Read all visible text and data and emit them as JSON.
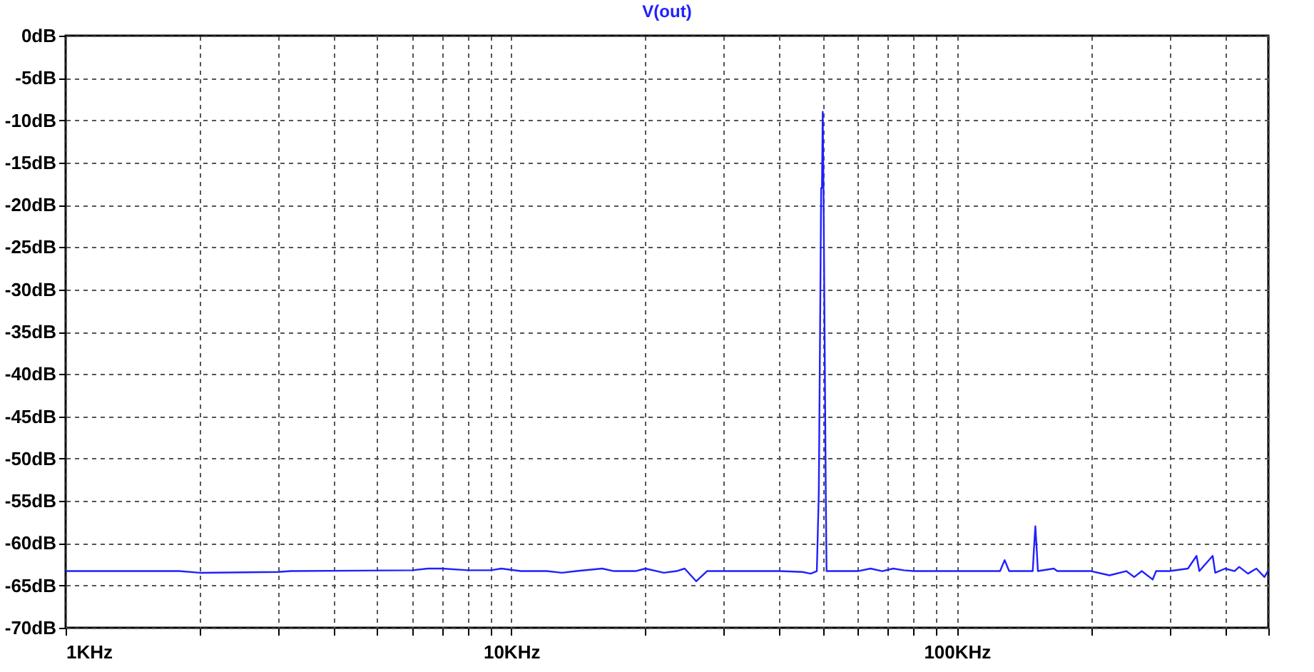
{
  "chart_data": {
    "type": "line",
    "title": "V(out)",
    "x": [
      1,
      1.8,
      2,
      3,
      3.2,
      6,
      6.5,
      7,
      8,
      9,
      9.5,
      10.5,
      12,
      13,
      14,
      16,
      17,
      19,
      20,
      22,
      23.5,
      24.5,
      26,
      27.5,
      30,
      40,
      45,
      47,
      48.5,
      49,
      49.3,
      49.6,
      49.8,
      50,
      50.2,
      50.5,
      50.8,
      51,
      55,
      60,
      64,
      68,
      72,
      76,
      80,
      100,
      125,
      128,
      131,
      148,
      149,
      150,
      151,
      152,
      165,
      168,
      200,
      220,
      240,
      250,
      260,
      275,
      280,
      300,
      330,
      345,
      350,
      375,
      380,
      400,
      420,
      430,
      450,
      470,
      490,
      500
    ],
    "series": [
      {
        "color": "#2020ff",
        "values": [
          -63.3,
          -63.3,
          -63.5,
          -63.4,
          -63.3,
          -63.2,
          -63.0,
          -63.0,
          -63.2,
          -63.2,
          -63.0,
          -63.3,
          -63.3,
          -63.5,
          -63.3,
          -63.0,
          -63.3,
          -63.3,
          -63.0,
          -63.5,
          -63.3,
          -63.0,
          -64.5,
          -63.3,
          -63.3,
          -63.3,
          -63.4,
          -63.6,
          -63.3,
          -54,
          -36,
          -18,
          -18,
          -9,
          -18,
          -36,
          -54,
          -63.3,
          -63.3,
          -63.3,
          -63.0,
          -63.3,
          -63.0,
          -63.2,
          -63.3,
          -63.3,
          -63.3,
          -62,
          -63.3,
          -63.3,
          -60.5,
          -58,
          -60.5,
          -63.3,
          -63.0,
          -63.3,
          -63.3,
          -63.8,
          -63.3,
          -64,
          -63.3,
          -64.3,
          -63.3,
          -63.3,
          -63,
          -61.5,
          -63.3,
          -61.5,
          -63.5,
          -63,
          -63.3,
          -62.8,
          -63.6,
          -63,
          -64,
          -63.2
        ]
      }
    ],
    "log": "x",
    "xlim": [
      1,
      500
    ],
    "xticks": [
      {
        "value": 1,
        "label": "1KHz"
      },
      {
        "value": 2,
        "label": null
      },
      {
        "value": 3,
        "label": null
      },
      {
        "value": 4,
        "label": null
      },
      {
        "value": 5,
        "label": null
      },
      {
        "value": 6,
        "label": null
      },
      {
        "value": 7,
        "label": null
      },
      {
        "value": 8,
        "label": null
      },
      {
        "value": 9,
        "label": null
      },
      {
        "value": 10,
        "label": "10KHz"
      },
      {
        "value": 20,
        "label": null
      },
      {
        "value": 30,
        "label": null
      },
      {
        "value": 40,
        "label": null
      },
      {
        "value": 50,
        "label": null
      },
      {
        "value": 60,
        "label": null
      },
      {
        "value": 70,
        "label": null
      },
      {
        "value": 80,
        "label": null
      },
      {
        "value": 90,
        "label": null
      },
      {
        "value": 100,
        "label": "100KHz"
      },
      {
        "value": 200,
        "label": null
      },
      {
        "value": 300,
        "label": null
      },
      {
        "value": 400,
        "label": null
      },
      {
        "value": 500,
        "label": null
      }
    ],
    "ylim": [
      -70,
      0
    ],
    "yticks": [
      {
        "value": -70,
        "label": "-70dB"
      },
      {
        "value": -65,
        "label": "-65dB"
      },
      {
        "value": -60,
        "label": "-60dB"
      },
      {
        "value": -55,
        "label": "-55dB"
      },
      {
        "value": -50,
        "label": "-50dB"
      },
      {
        "value": -45,
        "label": "-45dB"
      },
      {
        "value": -40,
        "label": "-40dB"
      },
      {
        "value": -35,
        "label": "-35dB"
      },
      {
        "value": -30,
        "label": "-30dB"
      },
      {
        "value": -25,
        "label": "-25dB"
      },
      {
        "value": -20,
        "label": "-20dB"
      },
      {
        "value": -15,
        "label": "-15dB"
      },
      {
        "value": -10,
        "label": "-10dB"
      },
      {
        "value": -5,
        "label": "-5dB"
      },
      {
        "value": 0,
        "label": "0dB"
      }
    ],
    "grid": true,
    "marker": "none",
    "line_style": "solid"
  }
}
